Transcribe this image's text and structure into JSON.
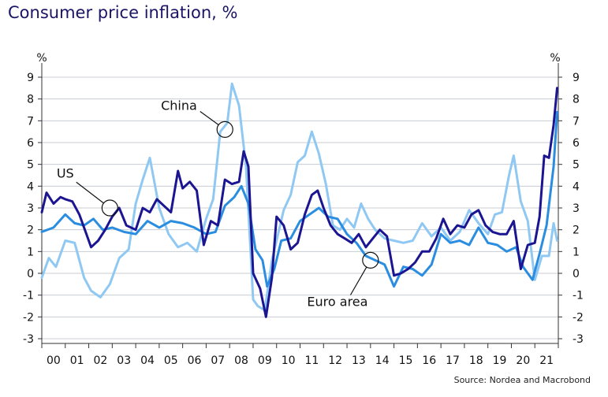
{
  "chart_data": {
    "type": "line",
    "title": "Consumer price inflation, %",
    "source": "Source: Nordea and Macrobond",
    "ylabel_left": "%",
    "ylabel_right": "%",
    "ylim": [
      -3,
      9
    ],
    "xlim": [
      2000,
      2022
    ],
    "yticks": [
      9,
      8,
      7,
      6,
      5,
      4,
      3,
      2,
      1,
      0,
      -1,
      -2,
      -3
    ],
    "xtick_labels": [
      "00",
      "01",
      "02",
      "03",
      "04",
      "05",
      "06",
      "07",
      "08",
      "09",
      "10",
      "11",
      "12",
      "13",
      "14",
      "15",
      "16",
      "17",
      "18",
      "19",
      "20",
      "21"
    ],
    "colors": {
      "us": "#1c1591",
      "euro": "#2b8de0",
      "china": "#8fc8f2",
      "grid": "#c8cdd3"
    },
    "series": [
      {
        "name": "US",
        "x": [
          2000,
          2000.2,
          2000.5,
          2000.8,
          2001,
          2001.3,
          2001.6,
          2001.9,
          2002.1,
          2002.4,
          2002.7,
          2003,
          2003.3,
          2003.6,
          2004,
          2004.3,
          2004.6,
          2004.9,
          2005.2,
          2005.5,
          2005.8,
          2006,
          2006.3,
          2006.6,
          2006.9,
          2007.2,
          2007.5,
          2007.8,
          2008.1,
          2008.4,
          2008.6,
          2008.8,
          2009,
          2009.3,
          2009.55,
          2009.8,
          2010,
          2010.3,
          2010.6,
          2010.9,
          2011.2,
          2011.5,
          2011.75,
          2012,
          2012.3,
          2012.6,
          2012.9,
          2013.2,
          2013.5,
          2013.8,
          2014.1,
          2014.4,
          2014.7,
          2015,
          2015.3,
          2015.6,
          2015.9,
          2016.2,
          2016.5,
          2016.8,
          2017.1,
          2017.4,
          2017.7,
          2018,
          2018.3,
          2018.6,
          2018.9,
          2019.2,
          2019.5,
          2019.8,
          2020.1,
          2020.4,
          2020.7,
          2021,
          2021.2,
          2021.4,
          2021.6,
          2021.8,
          2021.95
        ],
        "values": [
          2.8,
          3.7,
          3.2,
          3.5,
          3.4,
          3.3,
          2.7,
          1.8,
          1.2,
          1.5,
          2.0,
          2.6,
          3.0,
          2.2,
          2.0,
          3.0,
          2.8,
          3.4,
          3.1,
          2.8,
          4.7,
          3.9,
          4.2,
          3.8,
          1.3,
          2.4,
          2.2,
          4.3,
          4.1,
          4.2,
          5.6,
          4.9,
          0.0,
          -0.7,
          -2.0,
          -0.2,
          2.6,
          2.2,
          1.1,
          1.4,
          2.7,
          3.6,
          3.8,
          3.0,
          2.2,
          1.8,
          1.6,
          1.4,
          1.8,
          1.2,
          1.6,
          2.0,
          1.7,
          -0.1,
          0.0,
          0.2,
          0.5,
          1.0,
          1.0,
          1.6,
          2.5,
          1.8,
          2.2,
          2.1,
          2.7,
          2.9,
          2.2,
          1.9,
          1.8,
          1.8,
          2.4,
          0.2,
          1.3,
          1.4,
          2.6,
          5.4,
          5.3,
          6.8,
          8.5
        ]
      },
      {
        "name": "Euro area",
        "x": [
          2000,
          2000.5,
          2001,
          2001.4,
          2001.8,
          2002.2,
          2002.6,
          2003,
          2003.5,
          2004,
          2004.5,
          2005,
          2005.5,
          2006,
          2006.5,
          2007,
          2007.4,
          2007.8,
          2008.2,
          2008.5,
          2008.8,
          2009.1,
          2009.4,
          2009.6,
          2009.9,
          2010.2,
          2010.6,
          2011,
          2011.4,
          2011.8,
          2012.2,
          2012.6,
          2013,
          2013.4,
          2013.8,
          2014.2,
          2014.6,
          2015,
          2015.4,
          2015.8,
          2016.2,
          2016.6,
          2017,
          2017.4,
          2017.8,
          2018.2,
          2018.6,
          2019,
          2019.4,
          2019.8,
          2020.2,
          2020.5,
          2020.9,
          2021.2,
          2021.5,
          2021.8,
          2021.95
        ],
        "values": [
          1.9,
          2.1,
          2.7,
          2.3,
          2.2,
          2.5,
          2.0,
          2.1,
          1.9,
          1.8,
          2.4,
          2.1,
          2.4,
          2.3,
          2.1,
          1.8,
          1.9,
          3.1,
          3.5,
          4.0,
          3.2,
          1.1,
          0.6,
          -0.6,
          0.2,
          1.5,
          1.6,
          2.4,
          2.7,
          3.0,
          2.6,
          2.5,
          1.8,
          1.4,
          0.8,
          0.6,
          0.4,
          -0.6,
          0.3,
          0.2,
          -0.1,
          0.4,
          1.8,
          1.4,
          1.5,
          1.3,
          2.1,
          1.4,
          1.3,
          1.0,
          1.2,
          0.3,
          -0.3,
          0.9,
          2.2,
          4.9,
          7.4
        ]
      },
      {
        "name": "China",
        "x": [
          2000,
          2000.3,
          2000.6,
          2001,
          2001.4,
          2001.8,
          2002.1,
          2002.5,
          2002.9,
          2003.3,
          2003.7,
          2004,
          2004.3,
          2004.6,
          2005,
          2005.4,
          2005.8,
          2006.2,
          2006.6,
          2007,
          2007.3,
          2007.6,
          2007.9,
          2008.1,
          2008.4,
          2008.7,
          2009,
          2009.2,
          2009.5,
          2009.8,
          2010,
          2010.3,
          2010.6,
          2010.9,
          2011.2,
          2011.5,
          2011.8,
          2012.1,
          2012.4,
          2012.7,
          2013,
          2013.3,
          2013.6,
          2013.9,
          2014.2,
          2014.6,
          2015,
          2015.4,
          2015.8,
          2016.2,
          2016.6,
          2017,
          2017.4,
          2017.8,
          2018.2,
          2018.6,
          2019,
          2019.3,
          2019.6,
          2019.9,
          2020.1,
          2020.4,
          2020.7,
          2021,
          2021.3,
          2021.6,
          2021.8,
          2021.95
        ],
        "values": [
          -0.2,
          0.7,
          0.3,
          1.5,
          1.4,
          -0.2,
          -0.8,
          -1.1,
          -0.5,
          0.7,
          1.1,
          3.2,
          4.3,
          5.3,
          3.0,
          1.8,
          1.2,
          1.4,
          1.0,
          2.5,
          3.4,
          6.5,
          6.9,
          8.7,
          7.7,
          4.9,
          -1.2,
          -1.5,
          -1.7,
          0.6,
          1.5,
          2.9,
          3.6,
          5.1,
          5.4,
          6.5,
          5.5,
          4.1,
          2.2,
          2.0,
          2.5,
          2.1,
          3.2,
          2.5,
          2.0,
          1.6,
          1.5,
          1.4,
          1.5,
          2.3,
          1.7,
          2.1,
          1.5,
          1.9,
          2.9,
          2.3,
          1.8,
          2.7,
          2.8,
          4.5,
          5.4,
          3.3,
          2.4,
          -0.3,
          0.8,
          0.8,
          2.3,
          1.5
        ]
      }
    ],
    "annotations": [
      {
        "label": "China",
        "x": 2007.8,
        "y": 6.6,
        "text_x": 2005.4,
        "text_y": 7.5
      },
      {
        "label": "US",
        "x": 2002.9,
        "y": 3.0,
        "text_x": 2001.0,
        "text_y": 4.4
      },
      {
        "label": "Euro area",
        "x": 2014.0,
        "y": 0.6,
        "text_x": 2011.3,
        "text_y": -1.5
      }
    ]
  }
}
